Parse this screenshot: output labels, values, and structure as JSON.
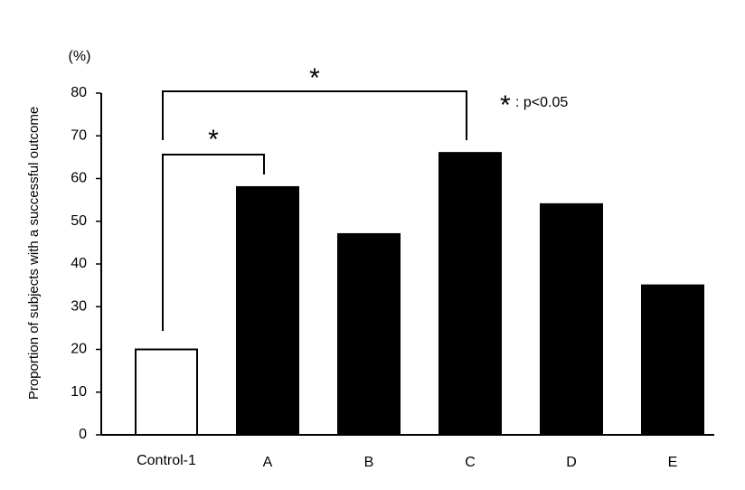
{
  "chart_data": {
    "type": "bar",
    "y_label": "Proportion of subjects with a successful outcome",
    "y_unit": "(%)",
    "categories": [
      "Control-1",
      "A",
      "B",
      "C",
      "D",
      "E"
    ],
    "values": [
      20,
      58,
      47,
      66,
      54,
      35
    ],
    "colors": [
      "#ffffff",
      "#000000",
      "#000000",
      "#000000",
      "#000000",
      "#000000"
    ],
    "ylim": [
      0,
      80
    ],
    "yticks": [
      0,
      10,
      20,
      30,
      40,
      50,
      60,
      70,
      80
    ],
    "significance": [
      {
        "from": "Control-1",
        "to": "A",
        "label": "*"
      },
      {
        "from": "Control-1",
        "to": "C",
        "label": "*"
      }
    ],
    "note_symbol": "*",
    "note_text": ": p<0.05"
  }
}
